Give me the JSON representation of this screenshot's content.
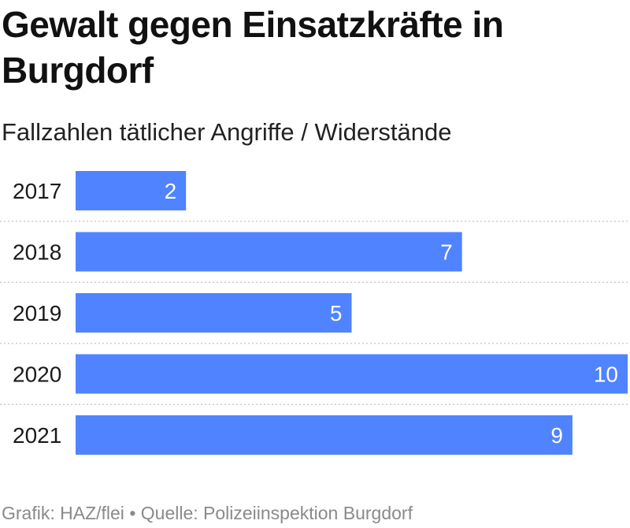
{
  "chart_data": {
    "type": "bar",
    "orientation": "horizontal",
    "title": "Gewalt gegen Einsatzkräfte in Burgdorf",
    "subtitle": "Fallzahlen tätlicher Angriffe / Widerstände",
    "categories": [
      "2017",
      "2018",
      "2019",
      "2020",
      "2021"
    ],
    "values": [
      2,
      7,
      5,
      10,
      9
    ],
    "xlim": [
      0,
      10
    ],
    "grid": false,
    "legend": "none",
    "bar_color": "#5083ff",
    "separator_color": "#cccccc"
  },
  "footer": {
    "credit": "Grafik: HAZ/flei",
    "separator": "•",
    "source": "Quelle: Polizeiinspektion Burgdorf"
  }
}
